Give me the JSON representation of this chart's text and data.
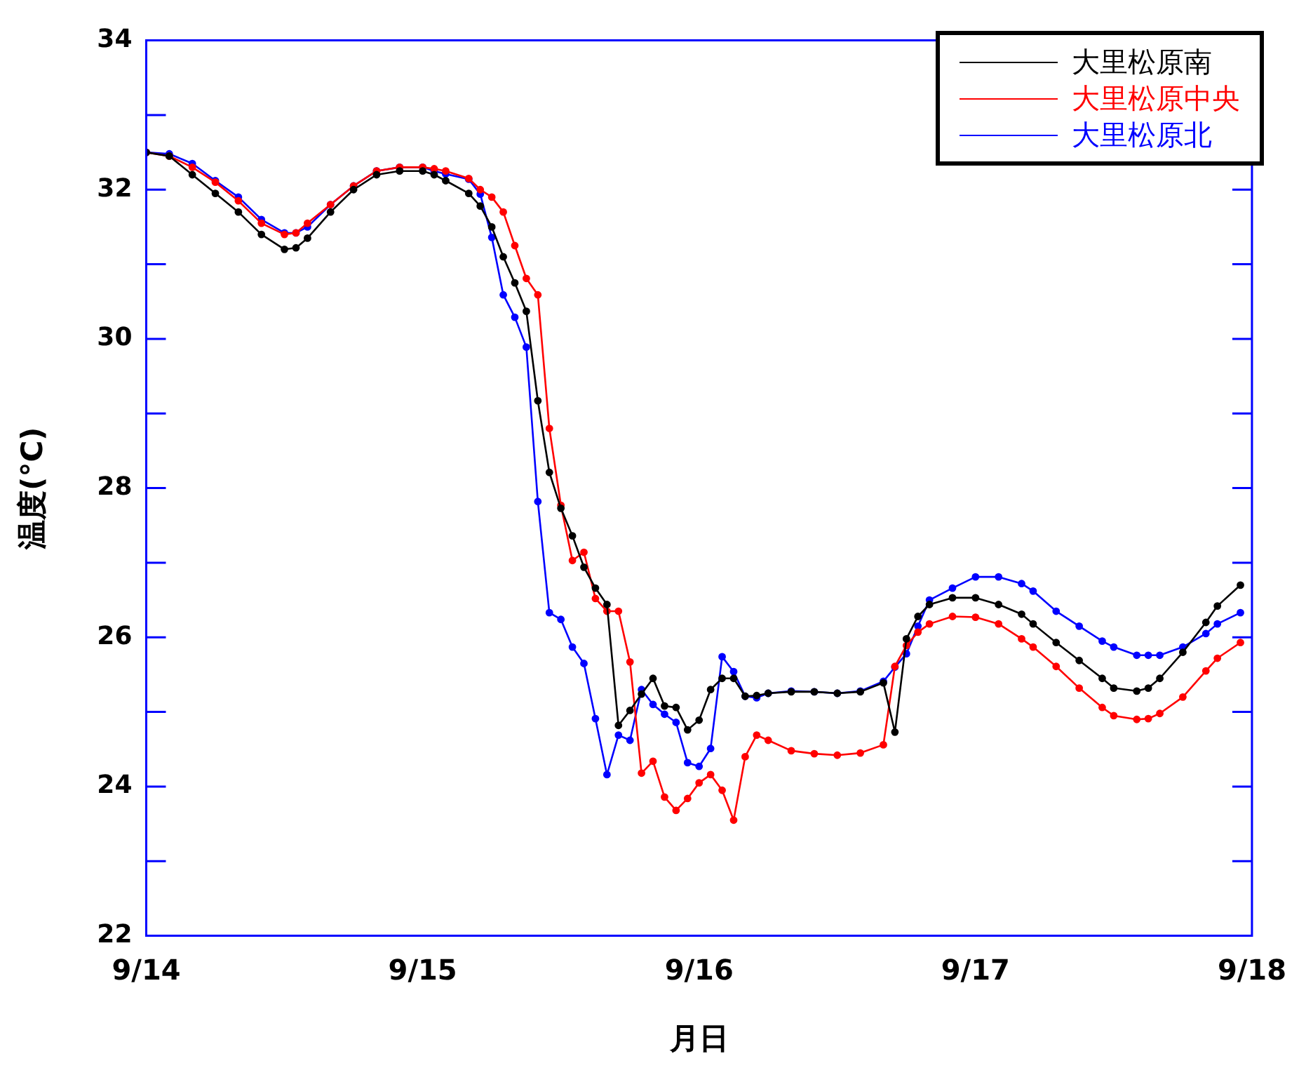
{
  "chart_data": {
    "type": "line",
    "xlabel": "月日",
    "ylabel": "温度(°C)",
    "x": [
      "--09-14T00:00",
      "--09-14T02:00",
      "--09-14T04:00",
      "--09-14T06:00",
      "--09-14T08:00",
      "--09-14T10:00",
      "--09-14T12:00",
      "--09-14T13:00",
      "--09-14T14:00",
      "--09-14T16:00",
      "--09-14T18:00",
      "--09-14T20:00",
      "--09-14T22:00",
      "--09-15T00:00",
      "--09-15T01:00",
      "--09-15T02:00",
      "--09-15T04:00",
      "--09-15T05:00",
      "--09-15T06:00",
      "--09-15T07:00",
      "--09-15T08:00",
      "--09-15T09:00",
      "--09-15T10:00",
      "--09-15T11:00",
      "--09-15T12:00",
      "--09-15T13:00",
      "--09-15T14:00",
      "--09-15T15:00",
      "--09-15T16:00",
      "--09-15T17:00",
      "--09-15T18:00",
      "--09-15T19:00",
      "--09-15T20:00",
      "--09-15T21:00",
      "--09-15T22:00",
      "--09-15T23:00",
      "--09-16T00:00",
      "--09-16T01:00",
      "--09-16T02:00",
      "--09-16T03:00",
      "--09-16T04:00",
      "--09-16T05:00",
      "--09-16T06:00",
      "--09-16T08:00",
      "--09-16T10:00",
      "--09-16T12:00",
      "--09-16T14:00",
      "--09-16T16:00",
      "--09-16T17:00",
      "--09-16T18:00",
      "--09-16T19:00",
      "--09-16T20:00",
      "--09-16T22:00",
      "--09-17T00:00",
      "--09-17T02:00",
      "--09-17T04:00",
      "--09-17T05:00",
      "--09-17T07:00",
      "--09-17T09:00",
      "--09-17T11:00",
      "--09-17T12:00",
      "--09-17T14:00",
      "--09-17T15:00",
      "--09-17T16:00",
      "--09-17T18:00",
      "--09-17T20:00",
      "--09-17T21:00",
      "--09-17T23:00"
    ],
    "series": [
      {
        "name": "大里松原南",
        "color": "#000000",
        "values": [
          32.5,
          32.45,
          32.2,
          31.95,
          31.7,
          31.4,
          31.2,
          31.22,
          31.35,
          31.7,
          32.0,
          32.2,
          32.25,
          32.25,
          32.2,
          32.12,
          31.95,
          31.78,
          31.5,
          31.1,
          30.75,
          30.37,
          29.17,
          28.21,
          27.73,
          27.36,
          26.94,
          26.66,
          26.44,
          24.82,
          25.02,
          25.24,
          25.45,
          25.08,
          25.06,
          24.76,
          24.89,
          25.3,
          25.45,
          25.45,
          25.21,
          25.22,
          25.25,
          25.27,
          25.27,
          25.25,
          25.27,
          25.39,
          24.73,
          25.98,
          26.28,
          26.44,
          26.53,
          26.53,
          26.44,
          26.31,
          26.18,
          25.93,
          25.69,
          25.45,
          25.32,
          25.28,
          25.32,
          25.45,
          25.8,
          26.2,
          26.42,
          26.7
        ]
      },
      {
        "name": "大里松原中央",
        "color": "#ff0000",
        "values": [
          32.5,
          32.45,
          32.3,
          32.1,
          31.85,
          31.55,
          31.4,
          31.42,
          31.55,
          31.8,
          32.05,
          32.25,
          32.3,
          32.3,
          32.28,
          32.25,
          32.15,
          32.0,
          31.9,
          31.7,
          31.25,
          30.81,
          30.59,
          28.8,
          27.77,
          27.03,
          27.14,
          26.52,
          26.35,
          26.35,
          25.67,
          24.18,
          24.34,
          23.86,
          23.68,
          23.84,
          24.05,
          24.16,
          23.95,
          23.55,
          24.4,
          24.69,
          24.62,
          24.48,
          24.44,
          24.42,
          24.45,
          24.56,
          25.61,
          25.89,
          26.07,
          26.18,
          26.28,
          26.27,
          26.18,
          25.98,
          25.87,
          25.61,
          25.32,
          25.06,
          24.95,
          24.9,
          24.91,
          24.98,
          25.2,
          25.55,
          25.72,
          25.93
        ]
      },
      {
        "name": "大里松原北",
        "color": "#0000ff",
        "values": [
          32.5,
          32.48,
          32.35,
          32.12,
          31.9,
          31.6,
          31.42,
          31.42,
          31.5,
          31.8,
          32.05,
          32.25,
          32.3,
          32.3,
          32.25,
          32.21,
          32.14,
          31.94,
          31.36,
          30.59,
          30.29,
          29.89,
          27.82,
          26.33,
          26.24,
          25.87,
          25.65,
          24.91,
          24.16,
          24.69,
          24.62,
          25.3,
          25.1,
          24.97,
          24.86,
          24.32,
          24.27,
          24.51,
          25.74,
          25.54,
          25.21,
          25.19,
          25.25,
          25.28,
          25.27,
          25.25,
          25.28,
          25.41,
          25.6,
          25.78,
          26.15,
          26.5,
          26.66,
          26.81,
          26.81,
          26.72,
          26.62,
          26.35,
          26.15,
          25.95,
          25.87,
          25.76,
          25.76,
          25.76,
          25.87,
          26.05,
          26.18,
          26.33
        ]
      }
    ],
    "xlim": [
      "--09-14",
      "--09-18"
    ],
    "xticks": [
      {
        "value": "--09-14",
        "label": "9/14"
      },
      {
        "value": "--09-15",
        "label": "9/15"
      },
      {
        "value": "--09-16",
        "label": "9/16"
      },
      {
        "value": "--09-17",
        "label": "9/17"
      },
      {
        "value": "--09-18",
        "label": "9/18"
      }
    ],
    "ylim": [
      22,
      34
    ],
    "yticks": [
      22,
      {
        "value": 23,
        "label": null
      },
      24,
      {
        "value": 25,
        "label": null
      },
      26,
      {
        "value": 27,
        "label": null
      },
      28,
      {
        "value": 29,
        "label": null
      },
      30,
      {
        "value": 31,
        "label": null
      },
      32,
      {
        "value": 33,
        "label": null
      },
      34
    ],
    "legend": "top right",
    "marker": "circle",
    "line_style": "solid"
  }
}
